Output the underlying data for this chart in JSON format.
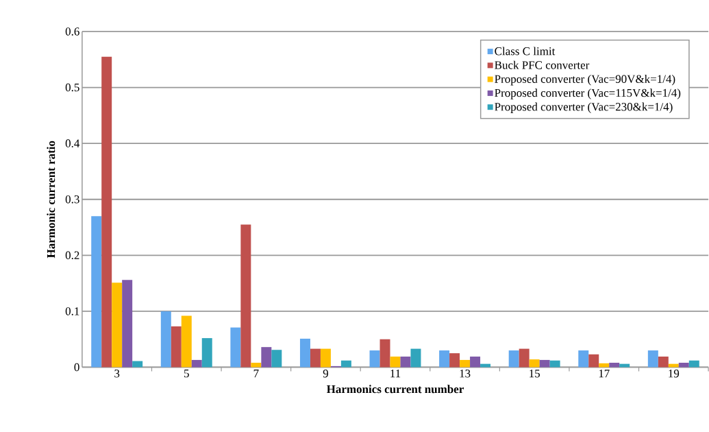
{
  "chart_data": {
    "type": "bar",
    "xlabel": "Harmonics current number",
    "ylabel": "Harmonic current ratio",
    "categories": [
      "3",
      "5",
      "7",
      "9",
      "11",
      "13",
      "15",
      "17",
      "19"
    ],
    "series": [
      {
        "name": "Class C limit",
        "color": "#62a8ee",
        "values": [
          0.27,
          0.1,
          0.071,
          0.051,
          0.03,
          0.03,
          0.03,
          0.03,
          0.03
        ]
      },
      {
        "name": "Buck PFC converter",
        "color": "#c0504d",
        "values": [
          0.555,
          0.073,
          0.255,
          0.033,
          0.05,
          0.025,
          0.033,
          0.023,
          0.019
        ]
      },
      {
        "name": "Proposed converter (Vac=90V&k=1/4)",
        "color": "#ffc000",
        "values": [
          0.151,
          0.092,
          0.008,
          0.033,
          0.019,
          0.013,
          0.014,
          0.007,
          0.006
        ]
      },
      {
        "name": "Proposed converter (Vac=115V&k=1/4)",
        "color": "#7f5aa8",
        "values": [
          0.156,
          0.013,
          0.036,
          0.002,
          0.019,
          0.019,
          0.013,
          0.008,
          0.008
        ]
      },
      {
        "name": "Proposed converter (Vac=230&k=1/4)",
        "color": "#31a5bc",
        "values": [
          0.011,
          0.052,
          0.031,
          0.012,
          0.033,
          0.006,
          0.012,
          0.006,
          0.012
        ]
      }
    ],
    "ylim": [
      0,
      0.6
    ],
    "yticks": [
      0,
      0.1,
      0.2,
      0.3,
      0.4,
      0.5,
      0.6
    ],
    "grid": "y",
    "legend": "top right"
  }
}
